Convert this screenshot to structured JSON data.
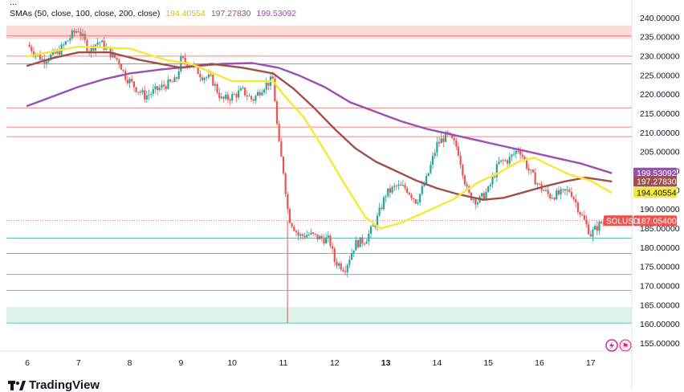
{
  "indicator": {
    "name": "SMAs (50, close, 100, close, 200, close)",
    "v50": "194.40554",
    "v100": "197.27830",
    "v200": "199.53092",
    "more": "..."
  },
  "symbol": "SOLUSD",
  "last_price": "187.05400",
  "brand": "TradingView",
  "colors": {
    "sma50": "#f5e936",
    "sma100": "#a0504a",
    "sma200": "#9b4fb0",
    "up": "#26a69a",
    "down": "#ef5350",
    "resistance": "#ef5350",
    "support": "#26a69a"
  },
  "chart_data": {
    "type": "candlestick",
    "x_ticks": [
      "6",
      "7",
      "8",
      "9",
      "10",
      "11",
      "12",
      "13",
      "14",
      "15",
      "16",
      "17"
    ],
    "y_ticks": [
      "240.00000",
      "235.00000",
      "230.00000",
      "225.00000",
      "220.00000",
      "215.00000",
      "210.00000",
      "205.00000",
      "200.00000",
      "195.00000",
      "190.00000",
      "185.00000",
      "180.00000",
      "175.00000",
      "170.00000",
      "165.00000",
      "160.00000",
      "155.00000"
    ],
    "ylim": [
      153,
      243
    ],
    "series_labels": [
      {
        "name": "SMA 200",
        "value": 199.53092
      },
      {
        "name": "SMA 100",
        "value": 197.2783
      },
      {
        "name": "SMA 50",
        "value": 194.40554
      },
      {
        "name": "SOLUSD",
        "value": 187.054
      }
    ],
    "resistance_lines": [
      235.3,
      230.0,
      228.0,
      216.5,
      211.5,
      209.0
    ],
    "resistance_zone": [
      234.5,
      238.0
    ],
    "support_lines": [
      182.5,
      178.5,
      173.0,
      168.8,
      160.3
    ],
    "support_zone": [
      160.3,
      164.5
    ],
    "price_path": [
      [
        6.0,
        233.0
      ],
      [
        6.3,
        229.0
      ],
      [
        6.6,
        231.0
      ],
      [
        6.9,
        236.0
      ],
      [
        7.0,
        237.0
      ],
      [
        7.2,
        231.5
      ],
      [
        7.4,
        234.0
      ],
      [
        7.6,
        231.0
      ],
      [
        7.8,
        228.5
      ],
      [
        7.9,
        225.0
      ],
      [
        8.1,
        222.0
      ],
      [
        8.3,
        219.5
      ],
      [
        8.5,
        221.0
      ],
      [
        8.7,
        222.5
      ],
      [
        8.9,
        223.5
      ],
      [
        9.0,
        229.0
      ],
      [
        9.2,
        228.0
      ],
      [
        9.4,
        225.0
      ],
      [
        9.6,
        224.0
      ],
      [
        9.8,
        218.5
      ],
      [
        10.0,
        219.5
      ],
      [
        10.2,
        221.0
      ],
      [
        10.4,
        218.5
      ],
      [
        10.6,
        222.0
      ],
      [
        10.8,
        224.0
      ],
      [
        10.9,
        208.0
      ],
      [
        11.0,
        200.0
      ],
      [
        11.1,
        188.0
      ],
      [
        11.3,
        183.0
      ],
      [
        11.5,
        183.5
      ],
      [
        11.7,
        182.5
      ],
      [
        11.9,
        182.0
      ],
      [
        12.0,
        176.5
      ],
      [
        12.2,
        174.5
      ],
      [
        12.4,
        181.0
      ],
      [
        12.6,
        182.0
      ],
      [
        12.8,
        186.5
      ],
      [
        13.0,
        194.0
      ],
      [
        13.2,
        196.0
      ],
      [
        13.4,
        195.5
      ],
      [
        13.6,
        192.0
      ],
      [
        13.8,
        198.0
      ],
      [
        14.0,
        207.0
      ],
      [
        14.2,
        209.5
      ],
      [
        14.4,
        206.0
      ],
      [
        14.6,
        194.0
      ],
      [
        14.8,
        192.0
      ],
      [
        15.0,
        195.0
      ],
      [
        15.2,
        202.0
      ],
      [
        15.4,
        203.0
      ],
      [
        15.6,
        206.0
      ],
      [
        15.8,
        200.0
      ],
      [
        16.0,
        196.0
      ],
      [
        16.2,
        193.5
      ],
      [
        16.4,
        194.0
      ],
      [
        16.6,
        195.0
      ],
      [
        16.8,
        189.0
      ],
      [
        17.0,
        183.5
      ],
      [
        17.2,
        186.5
      ]
    ],
    "sma50": [
      [
        6.0,
        230.0
      ],
      [
        7.0,
        232.5
      ],
      [
        8.0,
        232.0
      ],
      [
        8.7,
        229.0
      ],
      [
        9.2,
        228.0
      ],
      [
        10.0,
        223.5
      ],
      [
        10.8,
        223.5
      ],
      [
        11.0,
        220.0
      ],
      [
        11.4,
        214.0
      ],
      [
        11.8,
        205.5
      ],
      [
        12.2,
        196.5
      ],
      [
        12.6,
        188.0
      ],
      [
        12.9,
        185.0
      ],
      [
        13.3,
        186.5
      ],
      [
        13.8,
        189.5
      ],
      [
        14.3,
        192.5
      ],
      [
        14.8,
        197.0
      ],
      [
        15.2,
        199.5
      ],
      [
        15.6,
        202.5
      ],
      [
        15.9,
        203.5
      ],
      [
        16.2,
        201.5
      ],
      [
        16.6,
        199.0
      ],
      [
        17.0,
        197.5
      ],
      [
        17.4,
        194.4
      ]
    ],
    "sma100": [
      [
        6.0,
        227.5
      ],
      [
        6.5,
        229.5
      ],
      [
        7.0,
        231.0
      ],
      [
        7.6,
        231.0
      ],
      [
        8.2,
        229.0
      ],
      [
        9.0,
        227.0
      ],
      [
        9.6,
        228.0
      ],
      [
        10.2,
        227.0
      ],
      [
        10.8,
        225.5
      ],
      [
        11.2,
        221.5
      ],
      [
        11.6,
        216.5
      ],
      [
        12.0,
        211.0
      ],
      [
        12.4,
        206.0
      ],
      [
        12.8,
        202.5
      ],
      [
        13.2,
        200.0
      ],
      [
        13.6,
        197.5
      ],
      [
        14.0,
        195.5
      ],
      [
        14.4,
        194.0
      ],
      [
        14.9,
        192.5
      ],
      [
        15.3,
        193.0
      ],
      [
        15.7,
        194.5
      ],
      [
        16.1,
        196.0
      ],
      [
        16.5,
        197.3
      ],
      [
        16.9,
        198.3
      ],
      [
        17.4,
        197.3
      ]
    ],
    "sma200": [
      [
        6.0,
        217.0
      ],
      [
        6.5,
        219.5
      ],
      [
        7.0,
        222.0
      ],
      [
        7.5,
        224.0
      ],
      [
        8.0,
        225.5
      ],
      [
        8.6,
        226.5
      ],
      [
        9.2,
        227.3
      ],
      [
        9.8,
        228.0
      ],
      [
        10.4,
        228.2
      ],
      [
        10.9,
        227.0
      ],
      [
        11.3,
        225.0
      ],
      [
        11.8,
        222.0
      ],
      [
        12.3,
        218.0
      ],
      [
        12.8,
        215.5
      ],
      [
        13.3,
        213.0
      ],
      [
        13.8,
        211.0
      ],
      [
        14.3,
        209.5
      ],
      [
        14.8,
        208.0
      ],
      [
        15.3,
        206.5
      ],
      [
        15.8,
        205.0
      ],
      [
        16.3,
        203.5
      ],
      [
        16.8,
        202.0
      ],
      [
        17.4,
        199.5
      ]
    ]
  }
}
